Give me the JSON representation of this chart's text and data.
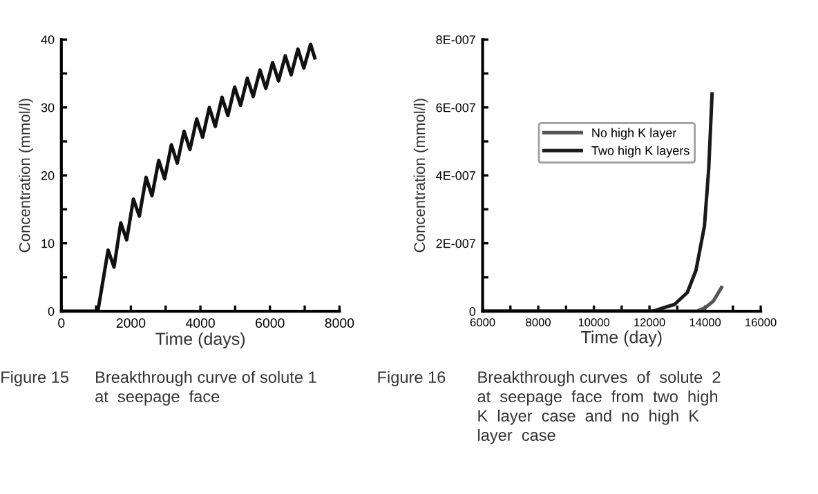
{
  "chart_data": [
    {
      "type": "line",
      "xlabel": "Time (days)",
      "ylabel": "Concentration (mmol/l)",
      "xlim": [
        0,
        8000
      ],
      "ylim": [
        0,
        40
      ],
      "xticks": [
        0,
        {
          "value": 1000,
          "label": null
        },
        2000,
        {
          "value": 3000,
          "label": null
        },
        4000,
        {
          "value": 5000,
          "label": null
        },
        6000,
        {
          "value": 7000,
          "label": null
        },
        8000
      ],
      "yticks": [
        0,
        {
          "value": 5,
          "label": null
        },
        10,
        {
          "value": 15,
          "label": null
        },
        20,
        {
          "value": 25,
          "label": null
        },
        30,
        {
          "value": 35,
          "label": null
        },
        40
      ],
      "grid": false,
      "legend": false,
      "x": [
        0,
        1050,
        1345,
        1515,
        1709,
        1879,
        2073,
        2243,
        2437,
        2607,
        2801,
        2971,
        3165,
        3335,
        3529,
        3699,
        3893,
        4063,
        4257,
        4427,
        4621,
        4791,
        4985,
        5155,
        5349,
        5519,
        5713,
        5883,
        6077,
        6247,
        6441,
        6611,
        6805,
        6975,
        7169,
        7290
      ],
      "series": [
        {
          "color": "#111111",
          "values": [
            0,
            0,
            9,
            6.5,
            13,
            10.5,
            16.5,
            14,
            19.7,
            17,
            22.2,
            19.5,
            24.5,
            21.8,
            26.5,
            23.8,
            28.3,
            25.6,
            30,
            27.2,
            31.5,
            28.8,
            33,
            30.3,
            34.3,
            31.6,
            35.5,
            32.8,
            36.6,
            33.9,
            37.6,
            34.8,
            38.6,
            35.8,
            39.3,
            37.3
          ]
        }
      ],
      "annotations": [
        "Figure 15",
        "Breakthrough curve of solute 1\nat  seepage  face"
      ]
    },
    {
      "type": "line",
      "xlabel": "Time (day)",
      "ylabel": "Concentration (mmol/l)",
      "xlim": [
        6000,
        16000
      ],
      "ylim": [
        0,
        8e-07
      ],
      "xticks": [
        6000,
        {
          "value": 7000,
          "label": null
        },
        8000,
        {
          "value": 9000,
          "label": null
        },
        10000,
        {
          "value": 11000,
          "label": null
        },
        12000,
        {
          "value": 13000,
          "label": null
        },
        14000,
        {
          "value": 15000,
          "label": null
        },
        16000
      ],
      "yticks": [
        {
          "value": 0,
          "label": "0"
        },
        {
          "value": 1e-07,
          "label": null
        },
        {
          "value": 2e-07,
          "label": "2E-007"
        },
        {
          "value": 3e-07,
          "label": null
        },
        {
          "value": 4e-07,
          "label": "4E-007"
        },
        {
          "value": 5e-07,
          "label": null
        },
        {
          "value": 6e-07,
          "label": "6E-007"
        },
        {
          "value": 7e-07,
          "label": null
        },
        {
          "value": 8e-07,
          "label": "8E-007"
        }
      ],
      "grid": false,
      "legend": "left",
      "series": [
        {
          "name": "No high K layer",
          "color": "#555555",
          "x": [
            6000,
            13400,
            13700,
            14000,
            14300,
            14590
          ],
          "values": [
            0,
            0,
            0,
            1e-08,
            3e-08,
            7e-08
          ]
        },
        {
          "name": "Two high K layers",
          "color": "#1a1a1a",
          "x": [
            6000,
            11800,
            12135,
            12500,
            12900,
            13360,
            13670,
            13975,
            14130,
            14250
          ],
          "values": [
            0,
            0,
            0,
            1e-08,
            2e-08,
            5.5e-08,
            1.2e-07,
            2.5e-07,
            4.2e-07,
            6.4e-07
          ]
        }
      ],
      "annotations": [
        "Figure 16",
        "Breakthrough curves  of  solute  2\nat  seepage  face  from  two  high\nK  layer  case  and  no  high  K\nlayer  case"
      ]
    }
  ]
}
